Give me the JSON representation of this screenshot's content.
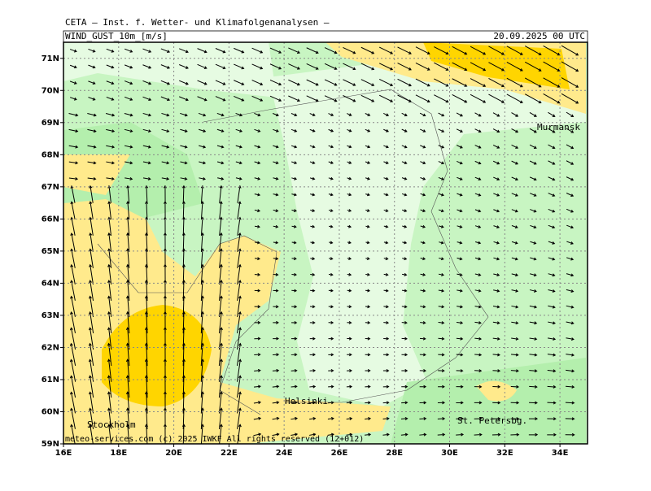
{
  "header": {
    "model": "CETA — Inst. f. Wetter- und Klimafolgenanalysen —",
    "field": "WIND_GUST_10m_[m/s]",
    "time": "20.09.2025 00 UTC"
  },
  "map": {
    "lonlim": [
      16,
      35
    ],
    "latlim": [
      59,
      71.5
    ],
    "lon_ticks": [
      {
        "value": 16,
        "label": "16E"
      },
      {
        "value": 18,
        "label": "18E"
      },
      {
        "value": 20,
        "label": "20E"
      },
      {
        "value": 22,
        "label": "22E"
      },
      {
        "value": 24,
        "label": "24E"
      },
      {
        "value": 26,
        "label": "26E"
      },
      {
        "value": 28,
        "label": "28E"
      },
      {
        "value": 30,
        "label": "30E"
      },
      {
        "value": 32,
        "label": "32E"
      },
      {
        "value": 34,
        "label": "34E"
      }
    ],
    "lat_ticks": [
      {
        "value": 59,
        "label": "59N"
      },
      {
        "value": 60,
        "label": "60N"
      },
      {
        "value": 61,
        "label": "61N"
      },
      {
        "value": 62,
        "label": "62N"
      },
      {
        "value": 63,
        "label": "63N"
      },
      {
        "value": 64,
        "label": "64N"
      },
      {
        "value": 65,
        "label": "65N"
      },
      {
        "value": 66,
        "label": "66N"
      },
      {
        "value": 67,
        "label": "67N"
      },
      {
        "value": 68,
        "label": "68N"
      },
      {
        "value": 69,
        "label": "69N"
      },
      {
        "value": 70,
        "label": "70N"
      },
      {
        "value": 71,
        "label": "71N"
      }
    ],
    "cities": [
      "Murmansk",
      "Helsinki",
      "Stockholm",
      "St. Petersbg."
    ],
    "footer": "meteo-services.com  (c) 2025 IWKF  All rights reserved (12+012)"
  }
}
